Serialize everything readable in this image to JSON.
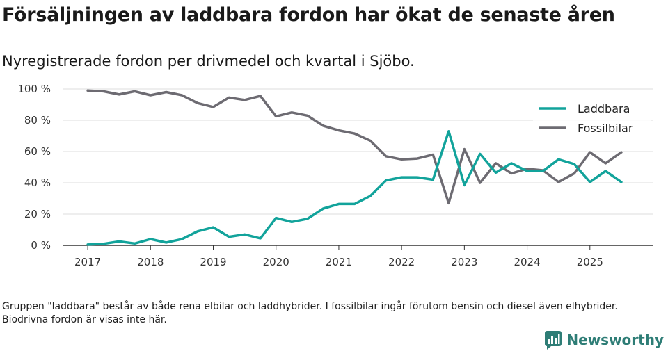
{
  "title": "Försäljningen av laddbara fordon har ökat de senaste åren",
  "subtitle": "Nyregistrerade fordon per drivmedel och kvartal i Sjöbo.",
  "footnote": "Gruppen \"laddbara\" består av både rena elbilar och laddhybrider. I fossilbilar ingår förutom bensin och diesel även elhybrider. Biodrivna fordon är visas inte här.",
  "brand": {
    "name": "Newsworthy",
    "icon": "newsworthy-logo-icon",
    "color": "#2e7d76"
  },
  "chart_data": {
    "type": "line",
    "title": "Försäljningen av laddbara fordon har ökat de senaste åren",
    "xlabel": "",
    "ylabel": "",
    "ylim": [
      0,
      100
    ],
    "yticks": [
      0,
      20,
      40,
      60,
      80,
      100
    ],
    "ytick_labels": [
      "0 %",
      "20 %",
      "40 %",
      "60 %",
      "80 %",
      "100 %"
    ],
    "xticks": [
      2017,
      2018,
      2019,
      2020,
      2021,
      2022,
      2023,
      2024,
      2025
    ],
    "xtick_labels": [
      "2017",
      "2018",
      "2019",
      "2020",
      "2021",
      "2022",
      "2023",
      "2024",
      "2025"
    ],
    "xlim": [
      2016.6,
      2026.0
    ],
    "grid": true,
    "legend_position": "top-right",
    "x": [
      2017.0,
      2017.25,
      2017.5,
      2017.75,
      2018.0,
      2018.25,
      2018.5,
      2018.75,
      2019.0,
      2019.25,
      2019.5,
      2019.75,
      2020.0,
      2020.25,
      2020.5,
      2020.75,
      2021.0,
      2021.25,
      2021.5,
      2021.75,
      2022.0,
      2022.25,
      2022.5,
      2022.75,
      2023.0,
      2023.25,
      2023.5,
      2023.75,
      2024.0,
      2024.25,
      2024.5,
      2024.75,
      2025.0,
      2025.25,
      2025.5
    ],
    "series": [
      {
        "name": "Laddbara",
        "color": "#12a39b",
        "values": [
          0.5,
          1,
          2.5,
          1.2,
          4,
          1.8,
          4,
          9,
          11.5,
          5.5,
          7,
          4.5,
          17.5,
          15,
          17,
          23.5,
          26.5,
          26.5,
          31.5,
          41.5,
          43.5,
          43.5,
          42,
          73,
          38.5,
          58.5,
          46.5,
          52.5,
          47.5,
          47.5,
          55,
          52,
          40.5,
          47.5,
          40.5
        ]
      },
      {
        "name": "Fossilbilar",
        "color": "#6d6b72",
        "values": [
          99,
          98.5,
          96.5,
          98.5,
          96,
          98,
          96,
          91,
          88.5,
          94.5,
          93,
          95.5,
          82.5,
          85,
          83,
          76.5,
          73.5,
          71.5,
          67,
          57,
          55,
          55.5,
          58,
          27,
          61.5,
          40,
          52.5,
          46,
          49,
          48,
          40.5,
          46,
          59.5,
          52.5,
          59.5
        ]
      }
    ]
  }
}
